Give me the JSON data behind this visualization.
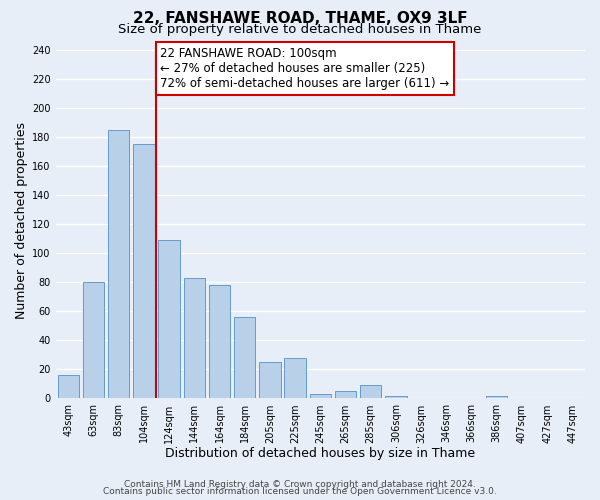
{
  "title": "22, FANSHAWE ROAD, THAME, OX9 3LF",
  "subtitle": "Size of property relative to detached houses in Thame",
  "xlabel": "Distribution of detached houses by size in Thame",
  "ylabel": "Number of detached properties",
  "categories": [
    "43sqm",
    "63sqm",
    "83sqm",
    "104sqm",
    "124sqm",
    "144sqm",
    "164sqm",
    "184sqm",
    "205sqm",
    "225sqm",
    "245sqm",
    "265sqm",
    "285sqm",
    "306sqm",
    "326sqm",
    "346sqm",
    "366sqm",
    "386sqm",
    "407sqm",
    "427sqm",
    "447sqm"
  ],
  "bar_heights": [
    16,
    80,
    185,
    175,
    109,
    83,
    78,
    56,
    25,
    28,
    3,
    5,
    9,
    2,
    0,
    0,
    0,
    2,
    0,
    0
  ],
  "bar_color": "#b8d0e8",
  "bar_edge_color": "#6699cc",
  "vline_index": 3,
  "vline_color": "#cc0000",
  "annotation_line1": "22 FANSHAWE ROAD: 100sqm",
  "annotation_line2": "← 27% of detached houses are smaller (225)",
  "annotation_line3": "72% of semi-detached houses are larger (611) →",
  "annotation_box_color": "#ffffff",
  "annotation_box_edge_color": "#cc0000",
  "ylim": [
    0,
    245
  ],
  "yticks": [
    0,
    20,
    40,
    60,
    80,
    100,
    120,
    140,
    160,
    180,
    200,
    220,
    240
  ],
  "footer1": "Contains HM Land Registry data © Crown copyright and database right 2024.",
  "footer2": "Contains public sector information licensed under the Open Government Licence v3.0.",
  "bg_color": "#e8eef7",
  "plot_bg_color": "#e8eef7",
  "grid_color": "#ffffff",
  "title_fontsize": 11,
  "subtitle_fontsize": 9.5,
  "xlabel_fontsize": 9,
  "ylabel_fontsize": 9,
  "tick_fontsize": 7,
  "annotation_fontsize": 8.5,
  "footer_fontsize": 6.5
}
